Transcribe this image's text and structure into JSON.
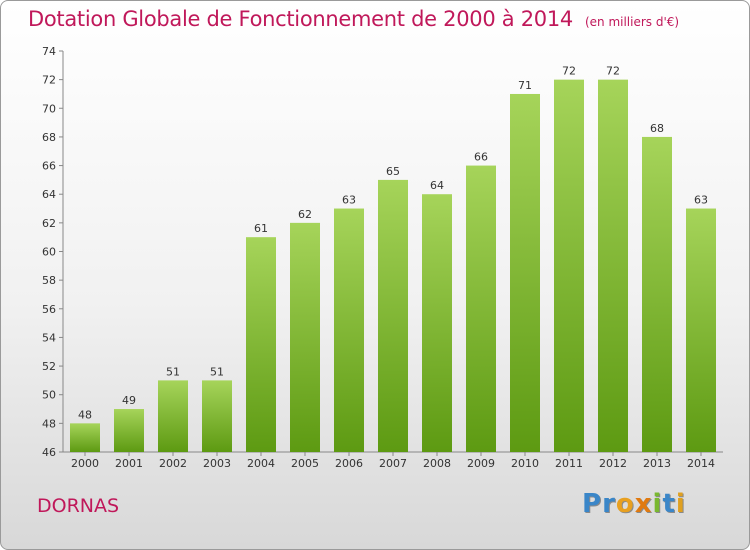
{
  "chart_data": {
    "type": "bar",
    "title": "Dotation Globale de Fonctionnement de 2000 à 2014",
    "subtitle": "(en milliers d'€)",
    "categories": [
      "2000",
      "2001",
      "2002",
      "2003",
      "2004",
      "2005",
      "2006",
      "2007",
      "2008",
      "2009",
      "2010",
      "2011",
      "2012",
      "2013",
      "2014"
    ],
    "values": [
      48,
      49,
      51,
      51,
      61,
      62,
      63,
      65,
      64,
      66,
      71,
      72,
      72,
      68,
      63
    ],
    "ylim": [
      46,
      74
    ],
    "yticks": [
      46,
      48,
      50,
      52,
      54,
      56,
      58,
      60,
      62,
      64,
      66,
      68,
      70,
      72,
      74
    ],
    "grid": false,
    "colors": {
      "bar_top": "#a6d45a",
      "bar_bottom": "#5d9a12",
      "title": "#c0185a"
    }
  },
  "footer": {
    "commune": "DORNAS"
  },
  "logo": {
    "letters": [
      {
        "ch": "P",
        "color": "#3a86c8"
      },
      {
        "ch": "r",
        "color": "#3a86c8"
      },
      {
        "ch": "o",
        "color": "#e8a020"
      },
      {
        "ch": "x",
        "color": "#e07a10"
      },
      {
        "ch": "i",
        "color": "#7ab830"
      },
      {
        "ch": "t",
        "color": "#3a86c8"
      },
      {
        "ch": "i",
        "color": "#e0a020"
      }
    ]
  }
}
